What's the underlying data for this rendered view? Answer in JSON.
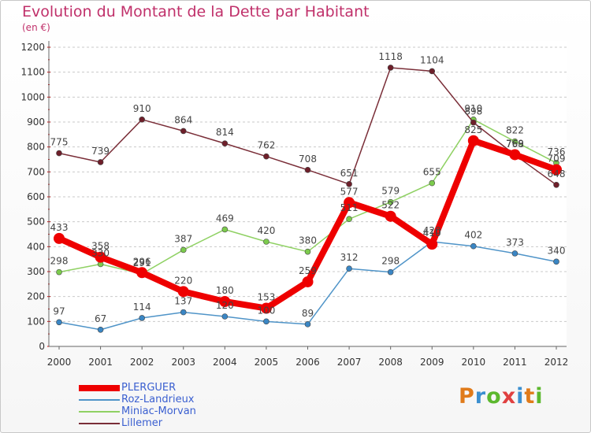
{
  "title": "Evolution du Montant de la Dette par Habitant",
  "unit": "(en €)",
  "brand": "Proxiti",
  "brand_colors": [
    "#e07b1a",
    "#3b8fd0",
    "#5cb82e",
    "#e04040",
    "#3b8fd0",
    "#e07b1a",
    "#5cb82e"
  ],
  "chart_data": {
    "type": "line",
    "title": "Evolution du Montant de la Dette par Habitant",
    "ylabel": "(en €)",
    "xlabel": "",
    "x": [
      "2000",
      "2001",
      "2002",
      "2003",
      "2004",
      "2005",
      "2006",
      "2007",
      "2008",
      "2009",
      "2010",
      "2011",
      "2012"
    ],
    "yticks": [
      "0",
      "100",
      "200",
      "300",
      "400",
      "500",
      "600",
      "700",
      "800",
      "900",
      "1000",
      "1100",
      "1200"
    ],
    "ylim": [
      0,
      1200
    ],
    "grid": "horizontal dashed",
    "legend_position": "bottom-left",
    "series": [
      {
        "name": "Roz-Landrieux",
        "color": "#4f94c8",
        "marker_color": "#3a86c4",
        "values": [
          97,
          67,
          114,
          137,
          120,
          100,
          89,
          312,
          298,
          420,
          402,
          373,
          340
        ],
        "labels": [
          "97",
          "67",
          "114",
          "137",
          "120",
          "100",
          "89",
          "312",
          "298",
          "420",
          "402",
          "373",
          "340"
        ]
      },
      {
        "name": "Miniac-Morvan",
        "color": "#8fd163",
        "marker_color": "#7ccb4d",
        "values": [
          298,
          330,
          291,
          387,
          469,
          420,
          380,
          511,
          579,
          655,
          910,
          822,
          736
        ],
        "labels": [
          "298",
          "330",
          "291",
          "387",
          "469",
          "420",
          "380",
          "511",
          "579",
          "655",
          "910",
          "822",
          "736"
        ]
      },
      {
        "name": "Lillemer",
        "color": "#7a2e38",
        "marker_color": "#6e1f2a",
        "values": [
          775,
          739,
          910,
          864,
          814,
          762,
          708,
          651,
          1118,
          1104,
          898,
          768,
          648
        ],
        "labels": [
          "775",
          "739",
          "910",
          "864",
          "814",
          "762",
          "708",
          "651",
          "1118",
          "1104",
          "898",
          "768",
          "648"
        ]
      },
      {
        "name": "PLERGUER",
        "color": "#ee0000",
        "marker_color": "#ee0000",
        "values": [
          433,
          358,
          296,
          220,
          180,
          153,
          259,
          577,
          522,
          410,
          825,
          769,
          709
        ],
        "labels": [
          "433",
          "358",
          "296",
          "220",
          "180",
          "153",
          "259",
          "577",
          "522",
          "410",
          "825",
          "769",
          "709"
        ]
      }
    ],
    "legend": [
      {
        "name": "PLERGUER",
        "color": "#ee0000",
        "text_color": "#3a5fd0"
      },
      {
        "name": "Roz-Landrieux",
        "color": "#4f94c8",
        "text_color": "#3a5fd0"
      },
      {
        "name": "Miniac-Morvan",
        "color": "#8fd163",
        "text_color": "#3a5fd0"
      },
      {
        "name": "Lillemer",
        "color": "#7a2e38",
        "text_color": "#3a5fd0"
      }
    ]
  }
}
